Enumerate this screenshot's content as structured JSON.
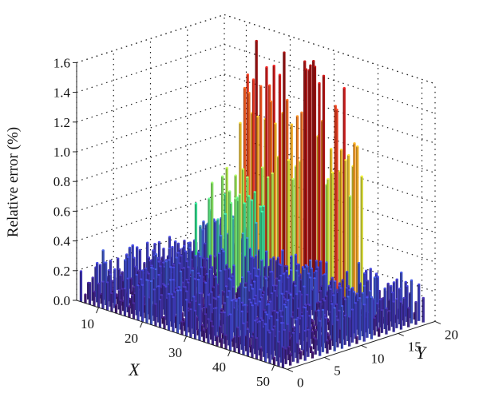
{
  "chart_data": {
    "type": "bar3d",
    "title": "",
    "zlabel": "Relative error (%)",
    "xlabel": "X",
    "ylabel": "Y",
    "x_ticks": [
      "10",
      "20",
      "30",
      "40",
      "50"
    ],
    "y_ticks": [
      "0",
      "5",
      "10",
      "15",
      "20"
    ],
    "z_ticks": [
      "0.0",
      "0.2",
      "0.4",
      "0.6",
      "0.8",
      "1.0",
      "1.2",
      "1.4",
      "1.6"
    ],
    "xlim": [
      5,
      53
    ],
    "ylim": [
      0,
      20
    ],
    "zlim": [
      0,
      1.6
    ],
    "grid": true,
    "colormap": [
      "#3f0d5a",
      "#3b3fbf",
      "#36d68a",
      "#c9e03a",
      "#f0a020",
      "#e02020",
      "#7a0a0a"
    ],
    "note": "Bars form a dense grid over x=5..53, y=0..20; a high-error block near y≈20 (x≈13..38) reaches ~1.55%, elsewhere errors are mostly below 0.3%."
  }
}
